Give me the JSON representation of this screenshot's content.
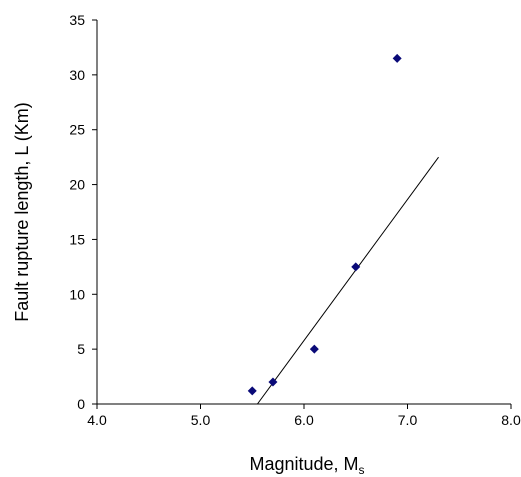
{
  "chart_data": {
    "type": "scatter",
    "title": "",
    "xlabel": "Magnitude, M",
    "xlabel_sub": "s",
    "ylabel": "Fault rupture length, L (Km)",
    "xlim": [
      4.0,
      8.0
    ],
    "ylim": [
      0,
      35
    ],
    "xticks": [
      "4.0",
      "5.0",
      "6.0",
      "7.0",
      "8.0"
    ],
    "yticks": [
      "0",
      "5",
      "10",
      "15",
      "20",
      "25",
      "30",
      "35"
    ],
    "grid": false,
    "legend": "none",
    "series": [
      {
        "marker": "diamond",
        "color": "#0a0a78",
        "points": [
          {
            "x": 5.5,
            "y": 1.2
          },
          {
            "x": 5.7,
            "y": 2.0
          },
          {
            "x": 6.1,
            "y": 5.0
          },
          {
            "x": 6.5,
            "y": 12.5
          },
          {
            "x": 6.9,
            "y": 31.5
          }
        ]
      }
    ],
    "trendline": {
      "type": "linear",
      "x_from": 5.55,
      "x_to": 7.3,
      "y_from": 0,
      "y_to": 22.5,
      "color": "#000000"
    }
  }
}
